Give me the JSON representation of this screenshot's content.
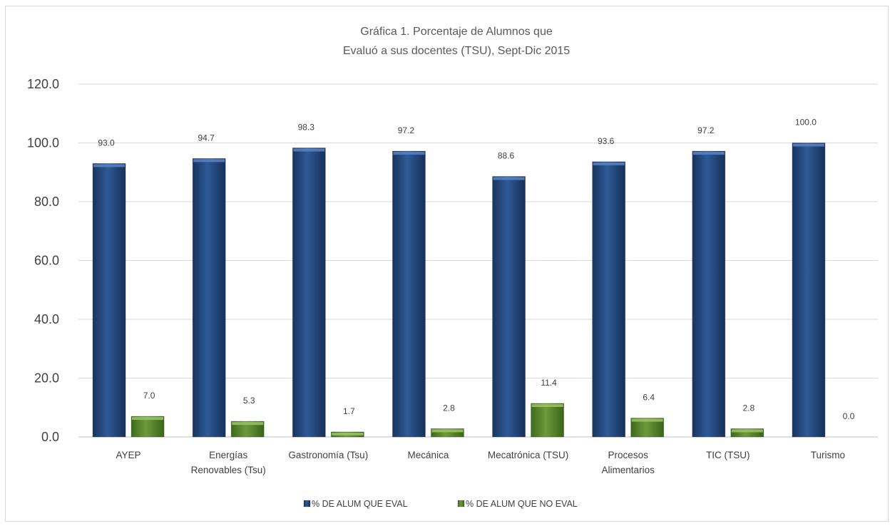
{
  "chart_data": {
    "type": "bar",
    "title_lines": [
      "Gráfica 1. Porcentaje  de Alumnos que",
      "Evaluó a sus docentes (TSU), Sept-Dic 2015"
    ],
    "categories": [
      [
        "AYEP"
      ],
      [
        "Energías",
        "Renovables  (Tsu)"
      ],
      [
        "Gastronomía (Tsu)"
      ],
      [
        "Mecánica"
      ],
      [
        "Mecatrónica (TSU)"
      ],
      [
        "Procesos",
        "Alimentarios"
      ],
      [
        "TIC (TSU)"
      ],
      [
        "Turismo"
      ]
    ],
    "series": [
      {
        "name": "% DE ALUM QUE EVAL",
        "values": [
          93.0,
          94.7,
          98.3,
          97.2,
          88.6,
          93.6,
          97.2,
          100.0
        ],
        "labels": [
          "93.0",
          "94.7",
          "98.3",
          "97.2",
          "88.6",
          "93.6",
          "97.2",
          "100.0"
        ],
        "color": "#1f3f73"
      },
      {
        "name": "% DE ALUM QUE NO  EVAL",
        "values": [
          7.0,
          5.3,
          1.7,
          2.8,
          11.4,
          6.4,
          2.8,
          0.0
        ],
        "labels": [
          "7.0",
          "5.3",
          "1.7",
          "2.8",
          "11.4",
          "6.4",
          "2.8",
          "0.0"
        ],
        "color": "#4f7a28"
      }
    ],
    "yticks": [
      "0.0",
      "20.0",
      "40.0",
      "60.0",
      "80.0",
      "100.0",
      "120.0"
    ],
    "ylim": [
      0,
      120
    ],
    "grid": true,
    "legend_position": "bottom"
  }
}
